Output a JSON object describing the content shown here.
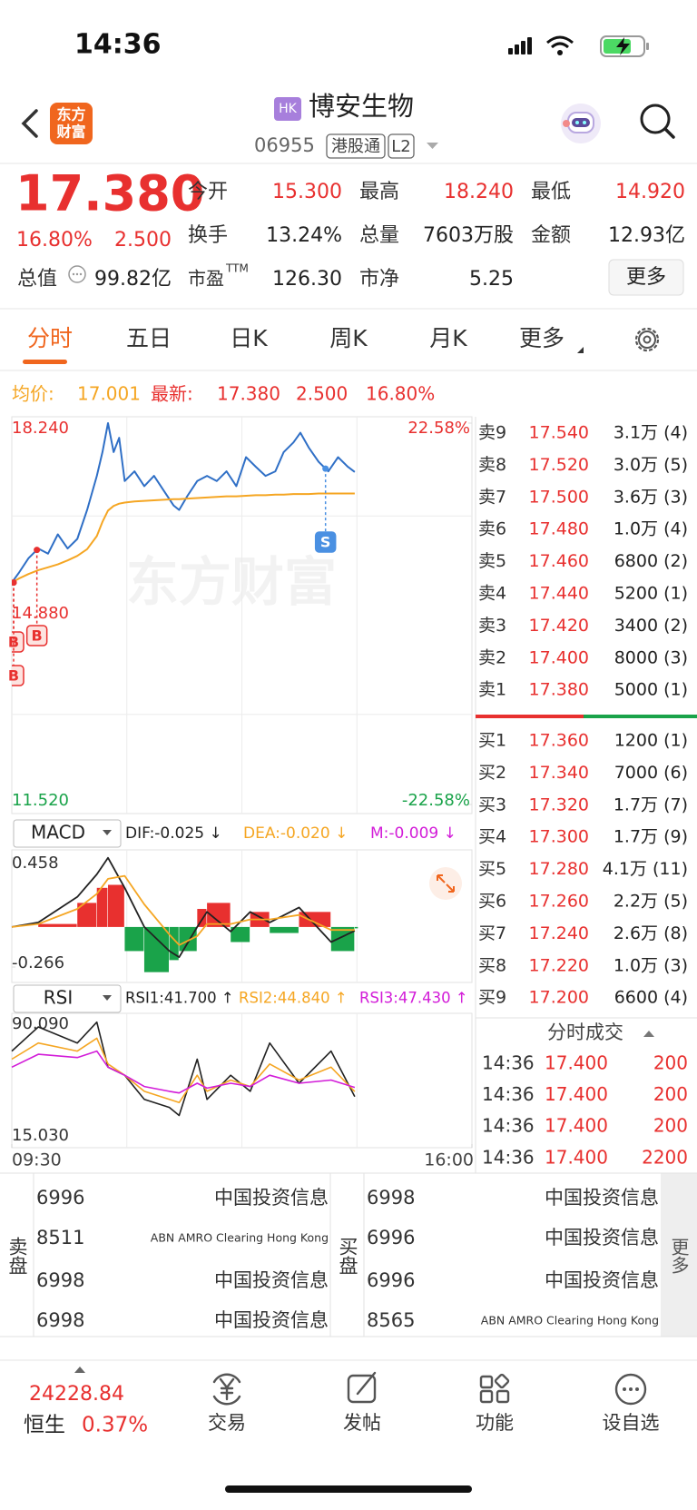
{
  "status_bar": {
    "time": "14:36"
  },
  "header": {
    "logo": [
      "东方",
      "财富"
    ],
    "market": "HK",
    "name": "博安生物",
    "code": "06955",
    "tags": [
      "港股通",
      "L2"
    ]
  },
  "quote": {
    "price": "17.380",
    "change_pct": "16.80%",
    "change": "2.500",
    "fields": [
      {
        "label": "今开",
        "value": "15.300"
      },
      {
        "label": "最高",
        "value": "18.240"
      },
      {
        "label": "最低",
        "value": "14.920"
      },
      {
        "label": "换手",
        "value": "13.24%"
      },
      {
        "label": "总量",
        "value": "7603万股"
      },
      {
        "label": "金额",
        "value": "12.93亿"
      },
      {
        "label": "总值",
        "value": "99.82亿"
      },
      {
        "label": "市盈",
        "sup": "TTM",
        "value": "126.30"
      },
      {
        "label": "市净",
        "value": "5.25"
      }
    ],
    "more": "更多"
  },
  "tabs": [
    "分时",
    "五日",
    "日K",
    "周K",
    "月K",
    "更多"
  ],
  "intraday": {
    "type": "line",
    "legend": {
      "avg_label": "均价:",
      "avg": "17.001",
      "latest_label": "最新:",
      "latest": "17.380",
      "change": "2.500",
      "change_pct": "16.80%"
    },
    "watermark": "东方财富",
    "x": [
      0,
      5,
      12,
      19,
      26,
      33,
      40,
      47,
      54,
      61,
      65,
      69,
      73,
      77,
      81,
      88,
      95,
      102,
      109,
      116,
      120,
      126,
      133,
      140,
      147,
      154,
      161,
      168,
      175,
      182,
      189,
      195,
      202,
      207,
      213,
      220,
      227,
      234,
      241,
      246
    ],
    "xlim": [
      0,
      330
    ],
    "xticks": [
      {
        "value": 0,
        "label": "09:30"
      },
      {
        "value": 330,
        "label": "16:00"
      }
    ],
    "ylim": [
      11.52,
      18.24
    ],
    "yticks": [
      {
        "value": 18.24,
        "label": "18.240"
      },
      {
        "value": 14.88,
        "label": "14.880"
      },
      {
        "value": 11.52,
        "label": "11.520"
      }
    ],
    "y2lim": [
      -22.58,
      22.58
    ],
    "y2ticks": [
      {
        "value": 22.58,
        "label": "22.58%"
      },
      {
        "value": -22.58,
        "label": "-22.58%"
      }
    ],
    "series": [
      {
        "color": "#2f6fc6",
        "values": [
          15.43,
          15.6,
          15.86,
          16.03,
          15.94,
          16.28,
          16.03,
          16.2,
          16.71,
          17.31,
          17.73,
          18.24,
          17.73,
          17.98,
          17.22,
          17.39,
          17.13,
          17.31,
          17.05,
          16.79,
          16.71,
          16.96,
          17.22,
          17.31,
          17.22,
          17.39,
          17.13,
          17.64,
          17.47,
          17.31,
          17.39,
          17.73,
          17.9,
          18.07,
          17.81,
          17.56,
          17.39,
          17.64,
          17.47,
          17.38
        ]
      },
      {
        "color": "#f5a623",
        "values": [
          15.43,
          15.5,
          15.58,
          15.65,
          15.7,
          15.75,
          15.82,
          15.9,
          16.02,
          16.25,
          16.5,
          16.7,
          16.78,
          16.82,
          16.84,
          16.86,
          16.87,
          16.88,
          16.89,
          16.9,
          16.9,
          16.91,
          16.92,
          16.93,
          16.94,
          16.95,
          16.95,
          16.96,
          16.97,
          16.97,
          16.98,
          16.98,
          16.99,
          16.99,
          16.99,
          17.0,
          17.0,
          17.0,
          17.0,
          17.0
        ]
      }
    ],
    "markers": [
      {
        "label": "B",
        "x": 0
      },
      {
        "label": "B",
        "x": 0
      },
      {
        "label": "B",
        "x": 18
      },
      {
        "label": "S",
        "x": 225
      }
    ]
  },
  "macd": {
    "type": "macd",
    "title": "MACD",
    "legend": [
      "DIF:-0.025 ↓",
      "DEA:-0.020 ↓",
      "M:-0.009 ↓"
    ],
    "ylim": [
      -0.266,
      0.458
    ],
    "yticks": [
      {
        "value": 0.458,
        "label": "0.458"
      },
      {
        "value": -0.266,
        "label": "-0.266"
      }
    ],
    "x": [
      0,
      19,
      47,
      61,
      69,
      81,
      95,
      113,
      120,
      133,
      140,
      157,
      171,
      185,
      206,
      229,
      246
    ],
    "series": [
      {
        "color": "#222222",
        "values": [
          0.0,
          0.03,
          0.2,
          0.35,
          0.46,
          0.26,
          0.0,
          -0.16,
          -0.2,
          0.0,
          0.1,
          -0.03,
          0.1,
          0.03,
          0.13,
          -0.1,
          -0.025
        ]
      },
      {
        "color": "#f5a623",
        "values": [
          0.0,
          0.02,
          0.12,
          0.22,
          0.32,
          0.34,
          0.15,
          -0.05,
          -0.12,
          -0.06,
          0.02,
          0.02,
          0.05,
          0.05,
          0.08,
          -0.02,
          -0.02
        ]
      }
    ],
    "bars": [
      0.0,
      0.02,
      0.16,
      0.26,
      0.28,
      -0.16,
      -0.3,
      -0.22,
      -0.16,
      0.12,
      0.16,
      -0.1,
      0.1,
      -0.04,
      0.1,
      -0.16,
      -0.009
    ]
  },
  "rsi": {
    "type": "line",
    "title": "RSI",
    "legend": [
      "RSI1:41.700 ↑",
      "RSI2:44.840 ↑",
      "RSI3:47.430 ↑"
    ],
    "ylim": [
      15.03,
      90.09
    ],
    "yticks": [
      {
        "value": 90.09,
        "label": "90.090"
      },
      {
        "value": 15.03,
        "label": "15.030"
      }
    ],
    "x": [
      0,
      19,
      47,
      61,
      69,
      81,
      95,
      113,
      120,
      133,
      140,
      157,
      171,
      185,
      206,
      229,
      246
    ],
    "series": [
      {
        "color": "#222222",
        "values": [
          70,
          85,
          75,
          88,
          60,
          55,
          40,
          35,
          30,
          65,
          40,
          55,
          45,
          75,
          50,
          70,
          41.7
        ]
      },
      {
        "color": "#f5a623",
        "values": [
          65,
          75,
          70,
          78,
          62,
          55,
          45,
          40,
          38,
          55,
          45,
          52,
          48,
          62,
          52,
          60,
          44.84
        ]
      },
      {
        "color": "#d21cd8",
        "values": [
          60,
          68,
          66,
          70,
          60,
          55,
          48,
          45,
          44,
          50,
          47,
          50,
          48,
          55,
          50,
          52,
          47.43
        ]
      }
    ]
  },
  "order_book": {
    "asks": [
      {
        "label": "卖9",
        "price": "17.540",
        "volume": "3.1万 (4)"
      },
      {
        "label": "卖8",
        "price": "17.520",
        "volume": "3.0万 (5)"
      },
      {
        "label": "卖7",
        "price": "17.500",
        "volume": "3.6万 (3)"
      },
      {
        "label": "卖6",
        "price": "17.480",
        "volume": "1.0万 (4)"
      },
      {
        "label": "卖5",
        "price": "17.460",
        "volume": "6800 (2)"
      },
      {
        "label": "卖4",
        "price": "17.440",
        "volume": "5200 (1)"
      },
      {
        "label": "卖3",
        "price": "17.420",
        "volume": "3400 (2)"
      },
      {
        "label": "卖2",
        "price": "17.400",
        "volume": "8000 (3)"
      },
      {
        "label": "卖1",
        "price": "17.380",
        "volume": "5000 (1)"
      }
    ],
    "bids": [
      {
        "label": "买1",
        "price": "17.360",
        "volume": "1200 (1)"
      },
      {
        "label": "买2",
        "price": "17.340",
        "volume": "7000 (6)"
      },
      {
        "label": "买3",
        "price": "17.320",
        "volume": "1.7万 (7)"
      },
      {
        "label": "买4",
        "price": "17.300",
        "volume": "1.7万 (9)"
      },
      {
        "label": "买5",
        "price": "17.280",
        "volume": "4.1万 (11)"
      },
      {
        "label": "买6",
        "price": "17.260",
        "volume": "2.2万 (5)"
      },
      {
        "label": "买7",
        "price": "17.240",
        "volume": "2.6万 (8)"
      },
      {
        "label": "买8",
        "price": "17.220",
        "volume": "1.0万 (3)"
      },
      {
        "label": "买9",
        "price": "17.200",
        "volume": "6600 (4)"
      }
    ]
  },
  "trades": {
    "title": "分时成交",
    "rows": [
      [
        "14:36",
        "17.400",
        "200"
      ],
      [
        "14:36",
        "17.400",
        "200"
      ],
      [
        "14:36",
        "17.400",
        "200"
      ],
      [
        "14:36",
        "17.400",
        "2200"
      ]
    ]
  },
  "brokers": {
    "sell_label": "卖盘",
    "buy_label": "买盘",
    "more": "更多",
    "sell": [
      [
        "6996",
        "中国投资信息"
      ],
      [
        "8511",
        "ABN AMRO Clearing Hong Kong"
      ],
      [
        "6998",
        "中国投资信息"
      ],
      [
        "6998",
        "中国投资信息"
      ]
    ],
    "buy": [
      [
        "6998",
        "中国投资信息"
      ],
      [
        "6996",
        "中国投资信息"
      ],
      [
        "6996",
        "中国投资信息"
      ],
      [
        "8565",
        "ABN AMRO Clearing Hong Kong"
      ]
    ]
  },
  "bottom_bar": {
    "index_value": "24228.84",
    "index_name": "恒生",
    "index_pct": "0.37%",
    "nav": [
      "交易",
      "发帖",
      "功能",
      "设自选"
    ]
  }
}
